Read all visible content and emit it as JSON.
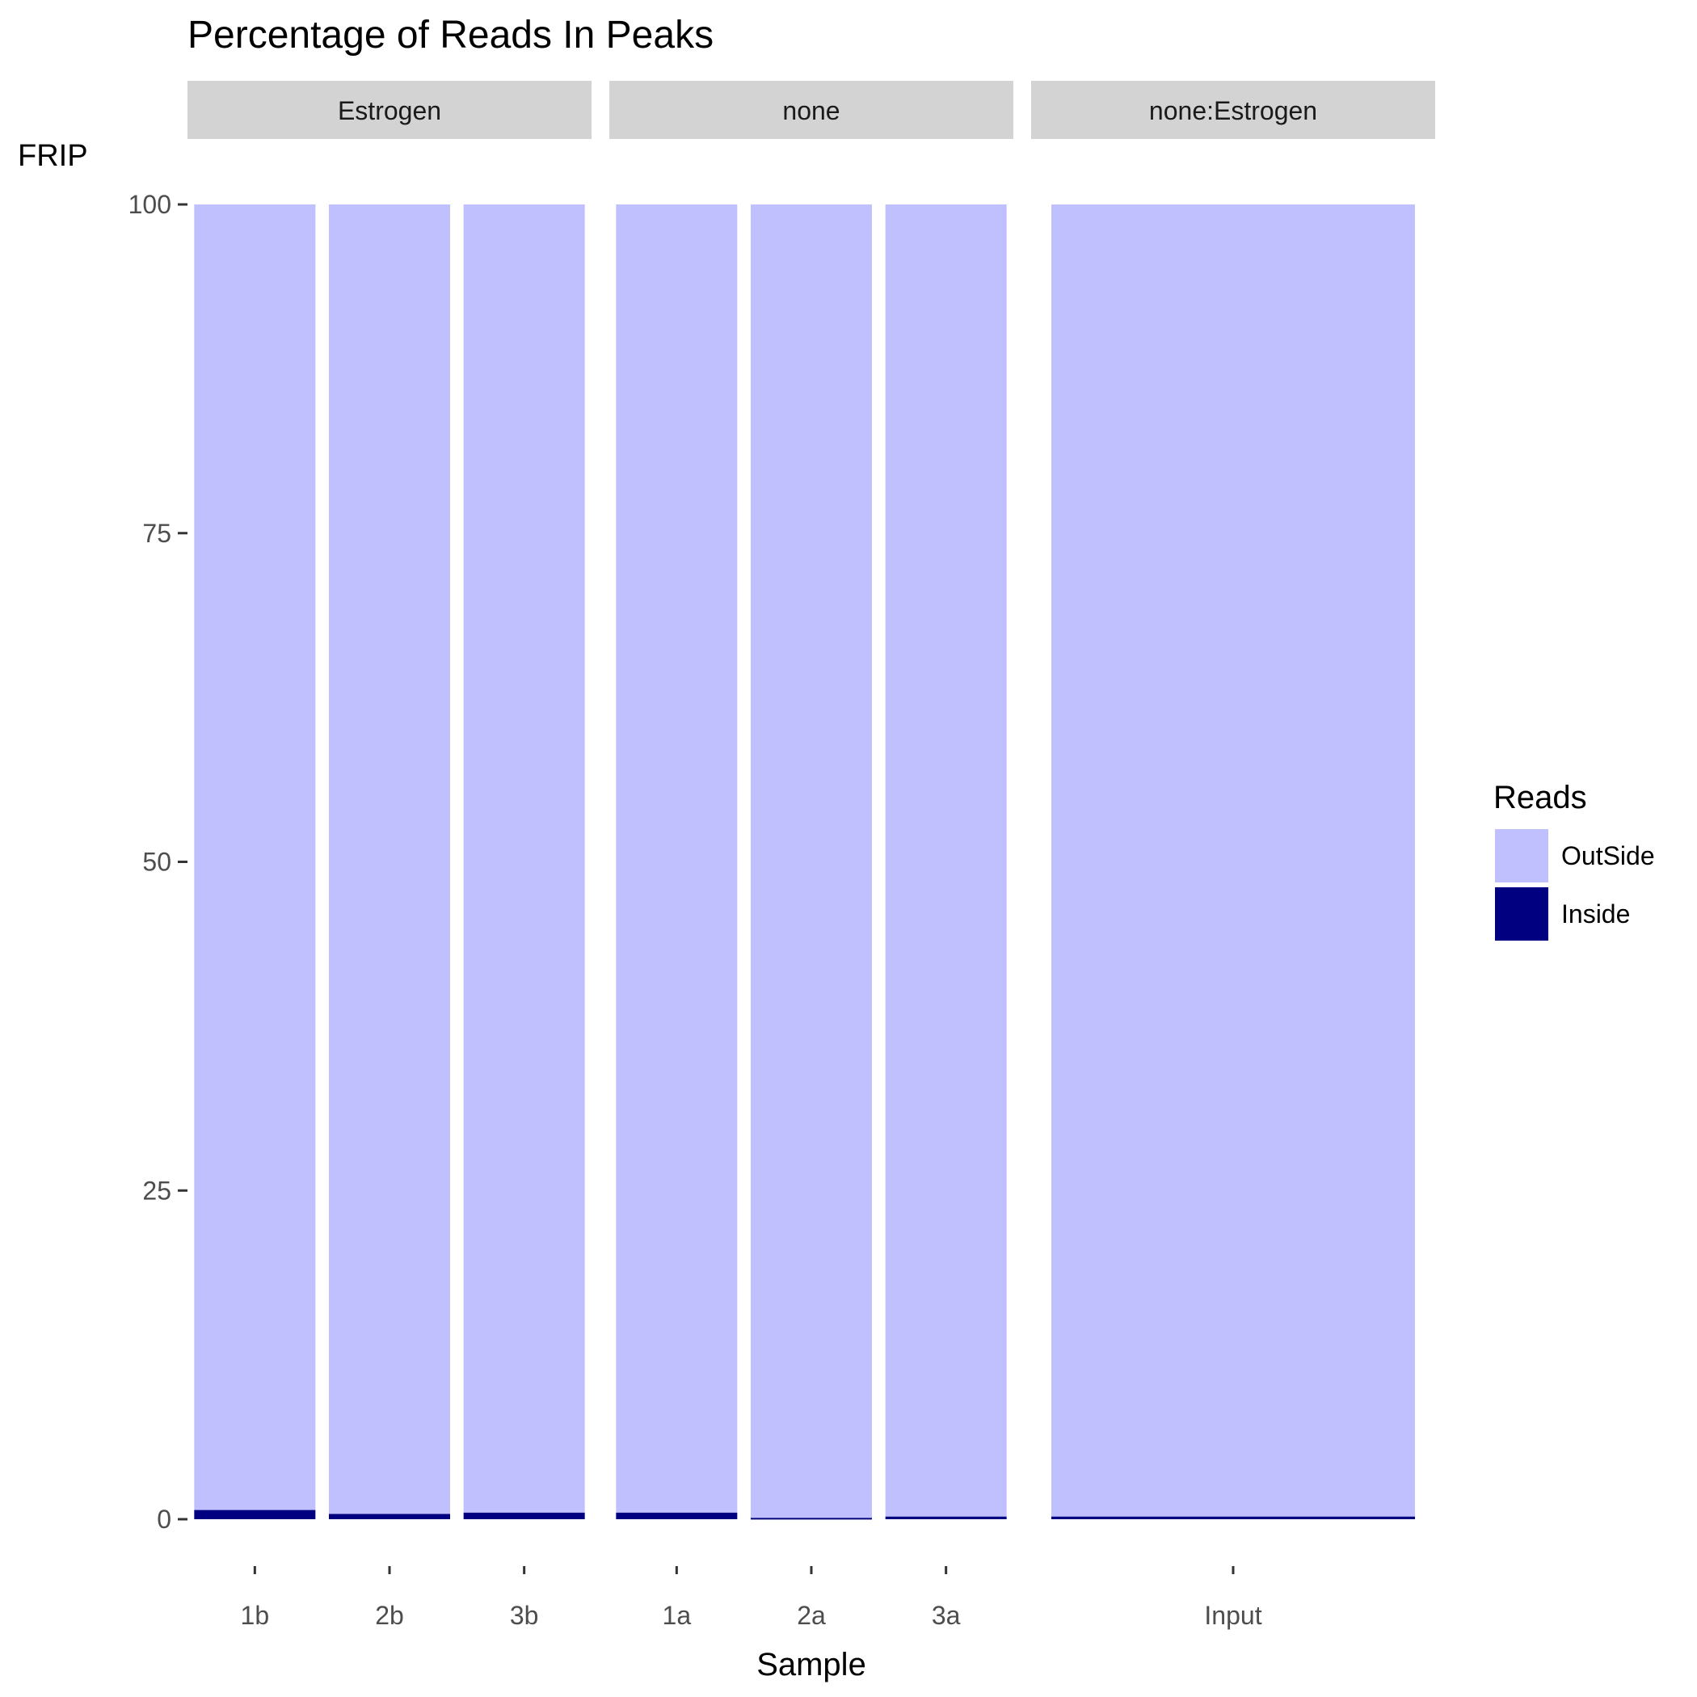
{
  "chart_data": {
    "type": "bar",
    "stacked": true,
    "title": "Percentage of Reads In Peaks",
    "xlabel": "Sample",
    "ylabel": "FRIP",
    "ylim": [
      0,
      100
    ],
    "yticks": [
      0,
      25,
      50,
      75,
      100
    ],
    "grid": false,
    "legend": {
      "title": "Reads",
      "position": "right",
      "entries": [
        {
          "name": "OutSide",
          "color": "#c0c0ff"
        },
        {
          "name": "Inside",
          "color": "#000080"
        }
      ]
    },
    "facets": [
      {
        "label": "Estrogen",
        "samples": [
          {
            "name": "1b",
            "inside": 0.7,
            "outside": 99.3
          },
          {
            "name": "2b",
            "inside": 0.4,
            "outside": 99.6
          },
          {
            "name": "3b",
            "inside": 0.5,
            "outside": 99.5
          }
        ]
      },
      {
        "label": "none",
        "samples": [
          {
            "name": "1a",
            "inside": 0.5,
            "outside": 99.5
          },
          {
            "name": "2a",
            "inside": 0.1,
            "outside": 99.9
          },
          {
            "name": "3a",
            "inside": 0.2,
            "outside": 99.8
          }
        ]
      },
      {
        "label": "none:Estrogen",
        "samples": [
          {
            "name": "Input",
            "inside": 0.2,
            "outside": 99.8
          }
        ]
      }
    ]
  }
}
